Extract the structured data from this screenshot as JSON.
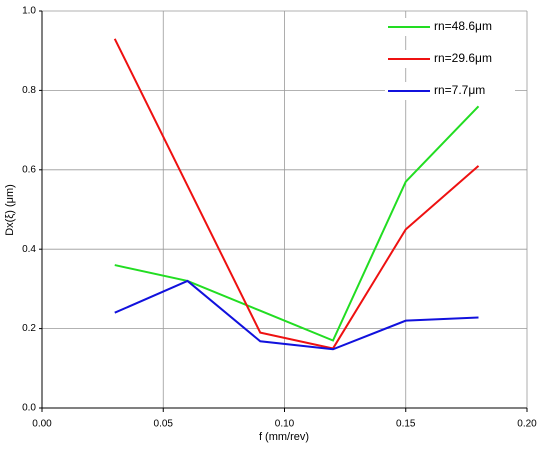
{
  "chart_data": {
    "type": "line",
    "x_label": "f (mm/rev)",
    "y_label": "Dx(ξ) (μm)",
    "x": [
      0.03,
      0.06,
      0.09,
      0.12,
      0.15,
      0.18
    ],
    "series": [
      {
        "name": "rn=48.6μm",
        "color": "#22dd22",
        "values": [
          0.36,
          0.32,
          0.245,
          0.17,
          0.57,
          0.76
        ]
      },
      {
        "name": "rn=29.6μm",
        "color": "#ee1111",
        "values": [
          0.93,
          0.56,
          0.19,
          0.15,
          0.45,
          0.61
        ]
      },
      {
        "name": "rn=7.7μm",
        "color": "#1111dd",
        "values": [
          0.24,
          0.32,
          0.168,
          0.148,
          0.22,
          0.228
        ]
      }
    ],
    "xlim": [
      0,
      0.2
    ],
    "ylim": [
      0,
      1
    ],
    "xticks": [
      {
        "value": 0,
        "label": "0.00"
      },
      {
        "value": 0.05,
        "label": "0.05"
      },
      {
        "value": 0.1,
        "label": "0.10"
      },
      {
        "value": 0.15,
        "label": "0.15"
      },
      {
        "value": 0.2,
        "label": "0.20"
      }
    ],
    "yticks": [
      {
        "value": 0,
        "label": "0.0"
      },
      {
        "value": 0.2,
        "label": "0.2"
      },
      {
        "value": 0.4,
        "label": "0.4"
      },
      {
        "value": 0.6,
        "label": "0.6"
      },
      {
        "value": 0.8,
        "label": "0.8"
      },
      {
        "value": 1,
        "label": "1.0"
      }
    ],
    "grid": true,
    "legend": "top-right"
  }
}
